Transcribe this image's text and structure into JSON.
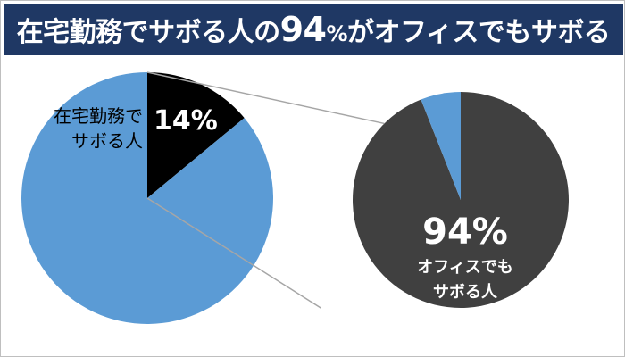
{
  "title": {
    "before": "在宅勤務でサボる人の",
    "number": "94",
    "percent": "%",
    "after": "がオフィスでもサボる"
  },
  "colors": {
    "title_bar": "#1f3864",
    "blue_slice": "#5b9bd5",
    "black_slice": "#000000",
    "dark_slice": "#404040",
    "connector": "#a6a6a6"
  },
  "chart_data": [
    {
      "type": "pie",
      "title": "",
      "slices": [
        {
          "label_lines": [
            "在宅勤務で",
            "サボる人"
          ],
          "value": 14,
          "value_label": "14%",
          "color": "#000000"
        },
        {
          "label_lines": [],
          "value": 86,
          "value_label": "",
          "color": "#5b9bd5"
        }
      ],
      "start_angle": "12 o'clock",
      "direction": "clockwise"
    },
    {
      "type": "pie",
      "title": "",
      "slices": [
        {
          "label_lines": [
            "オフィスでも",
            "サボる人"
          ],
          "value": 94,
          "value_label": "94%",
          "color": "#404040"
        },
        {
          "label_lines": [],
          "value": 6,
          "value_label": "",
          "color": "#5b9bd5"
        }
      ],
      "start_angle": "12 o'clock",
      "direction": "clockwise"
    }
  ]
}
